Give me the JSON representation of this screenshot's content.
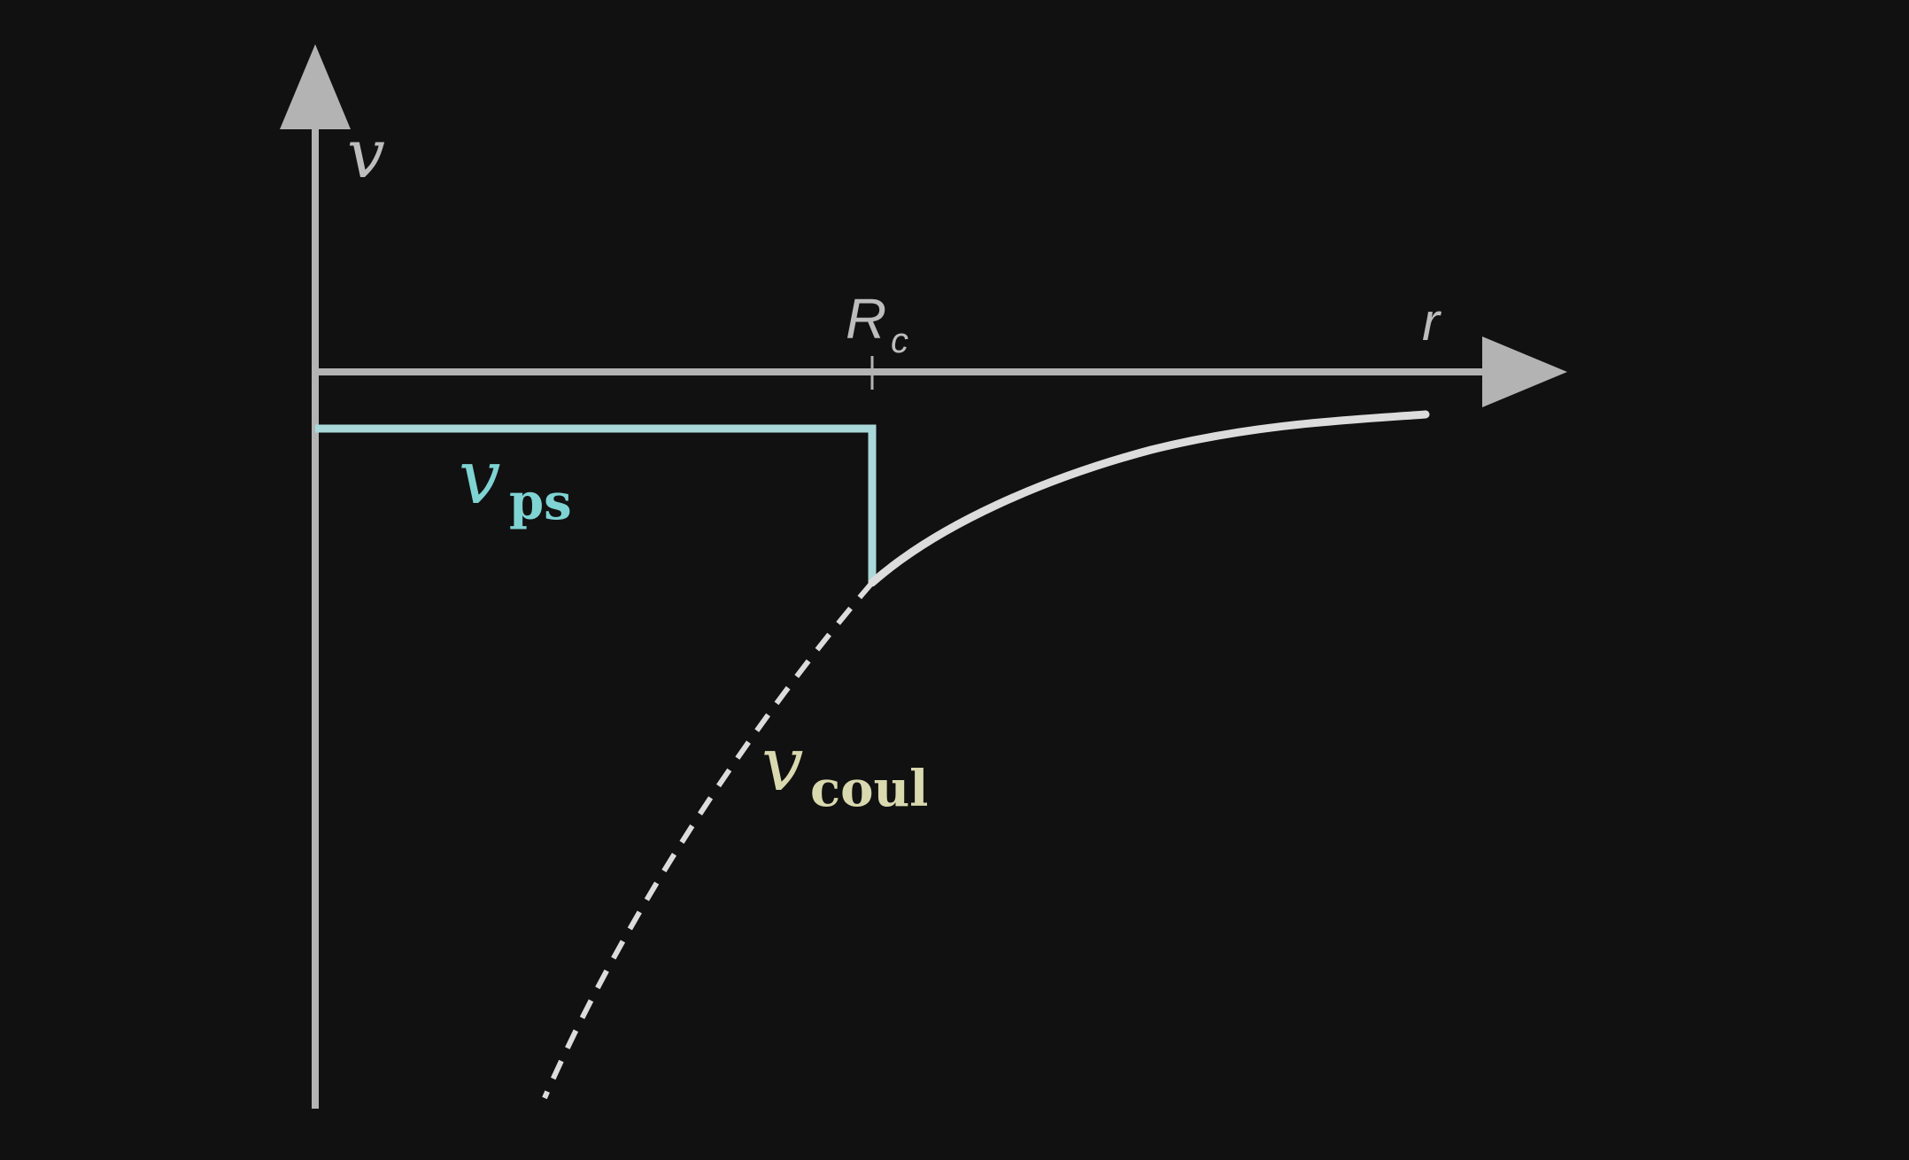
{
  "diagram": {
    "y_axis_label": "v",
    "x_axis_label": "r",
    "cutoff_label": {
      "main": "R",
      "sub": "c"
    },
    "pseudo_label": {
      "main": "v",
      "sub": "ps"
    },
    "coulomb_label": {
      "main": "v",
      "sub": "coul"
    }
  },
  "colors": {
    "background": "#111111",
    "axes": "#b3b3b3",
    "pseudopotential": "#a9d8d8",
    "pseudo_label": "#7fd3d3",
    "coulomb_curve": "#dcdcdc",
    "coulomb_label": "#d9d9b0"
  }
}
